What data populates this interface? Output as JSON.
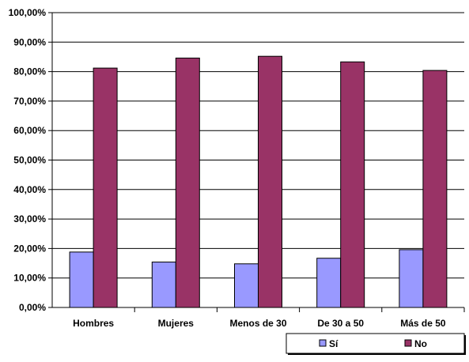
{
  "chart_data": {
    "type": "bar",
    "categories": [
      "Hombres",
      "Mujeres",
      "Menos de 30",
      "De 30 a 50",
      "Más de 50"
    ],
    "series": [
      {
        "name": "Sí",
        "values": [
          18.8,
          15.4,
          14.8,
          16.7,
          19.6
        ],
        "color": "#9999FF"
      },
      {
        "name": "No",
        "values": [
          81.2,
          84.6,
          85.2,
          83.3,
          80.4
        ],
        "color": "#993366"
      }
    ],
    "ylim": [
      0,
      100
    ],
    "yticks": [
      "0,00%",
      "10,00%",
      "20,00%",
      "30,00%",
      "40,00%",
      "50,00%",
      "60,00%",
      "70,00%",
      "80,00%",
      "90,00%",
      "100,00%"
    ],
    "grid": true,
    "legend_position": "bottom-right",
    "title": "",
    "xlabel": "",
    "ylabel": ""
  }
}
